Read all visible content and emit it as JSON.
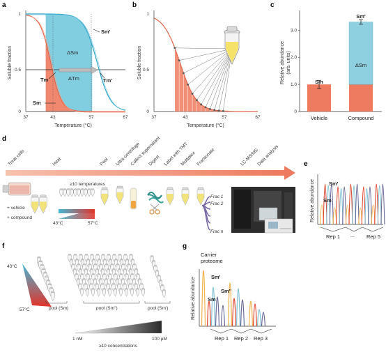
{
  "panels": {
    "a": {
      "letter": "a",
      "ylabel": "Soluble fraction",
      "xlabel": "Temperature (°C)",
      "yticks": [
        "0",
        "0.5",
        "1"
      ],
      "xticks": [
        "37",
        "43",
        "57",
        "67"
      ],
      "labels": {
        "sm_prime": "Sm'",
        "delta_sm": "ΔSm",
        "tm": "Tm",
        "tm_prime": "Tm'",
        "delta_tm": "ΔTm",
        "sm": "Sm"
      }
    },
    "b": {
      "letter": "b",
      "ylabel": "Soluble fraction",
      "xlabel": "Temperature (°C)",
      "yticks": [
        "0",
        "0.5",
        "1"
      ],
      "xticks": [
        "37",
        "43",
        "57",
        "67"
      ]
    },
    "c": {
      "letter": "c",
      "ylabel": "Relative abundance\n(arb. units)",
      "yticks": [
        "0",
        "1.0",
        "2.0",
        "3.0"
      ],
      "categories": [
        "Vehicle",
        "Compound"
      ],
      "labels": {
        "sm": "Sm",
        "sm_prime": "Sm'",
        "delta_sm": "ΔSm"
      }
    },
    "d": {
      "letter": "d",
      "steps": [
        "Treat cells",
        "Heat",
        "Pool",
        "Ultra-centrifuge",
        "Collect supernatant",
        "Digest",
        "Label with TMT",
        "Multiplex",
        "Fractionate",
        "LC-MS/MS",
        "Data analysis"
      ],
      "temps_note": "≥10 temperatures",
      "temp_low": "43°C",
      "temp_high": "57°C",
      "vehicle": "+ vehicle",
      "compound": "+ compound",
      "fractions": [
        "Frac 1",
        "Frac 2",
        "Frac n"
      ]
    },
    "e": {
      "letter": "e",
      "ylabel": "Relative abundance",
      "labels": {
        "sm": "Sm",
        "sm_prime": "Sm'"
      },
      "reps": [
        "Rep 1",
        "...",
        "Rep 5"
      ]
    },
    "f": {
      "letter": "f",
      "temp_high": "43°C",
      "temp_low": "57°C",
      "pool_sm": "pool (Sm)",
      "pool_smpp": "pool (Sm'')",
      "pool_smp": "pool (Sm')",
      "conc_low": "1 nM",
      "conc_high": "100 μM",
      "conc_note": "≥10 concentrations"
    },
    "g": {
      "letter": "g",
      "ylabel": "Relative abundance",
      "carrier": "Carrier\nproteome",
      "labels": {
        "sm": "Sm",
        "sm_prime": "Sm'",
        "sm_dprime": "Sm''"
      },
      "reps": [
        "Rep 1",
        "Rep 2",
        "Rep 3"
      ]
    }
  },
  "colors": {
    "orange": "#ee7b5f",
    "cyan": "#45b7d6",
    "lightblue": "#8ed0e0",
    "arrow": "#f0a68a",
    "purple": "#7b6aa8"
  },
  "chart_data": {
    "type": "bar",
    "title": "",
    "xlabel": "",
    "ylabel": "Relative abundance (arb. units)",
    "categories": [
      "Vehicle",
      "Compound"
    ],
    "series": [
      {
        "name": "Sm",
        "values": [
          1.0,
          1.0
        ]
      },
      {
        "name": "ΔSm",
        "values": [
          0,
          2.3
        ]
      }
    ],
    "errors": [
      0.15,
      0.08
    ],
    "ylim": [
      0,
      3.6
    ]
  }
}
